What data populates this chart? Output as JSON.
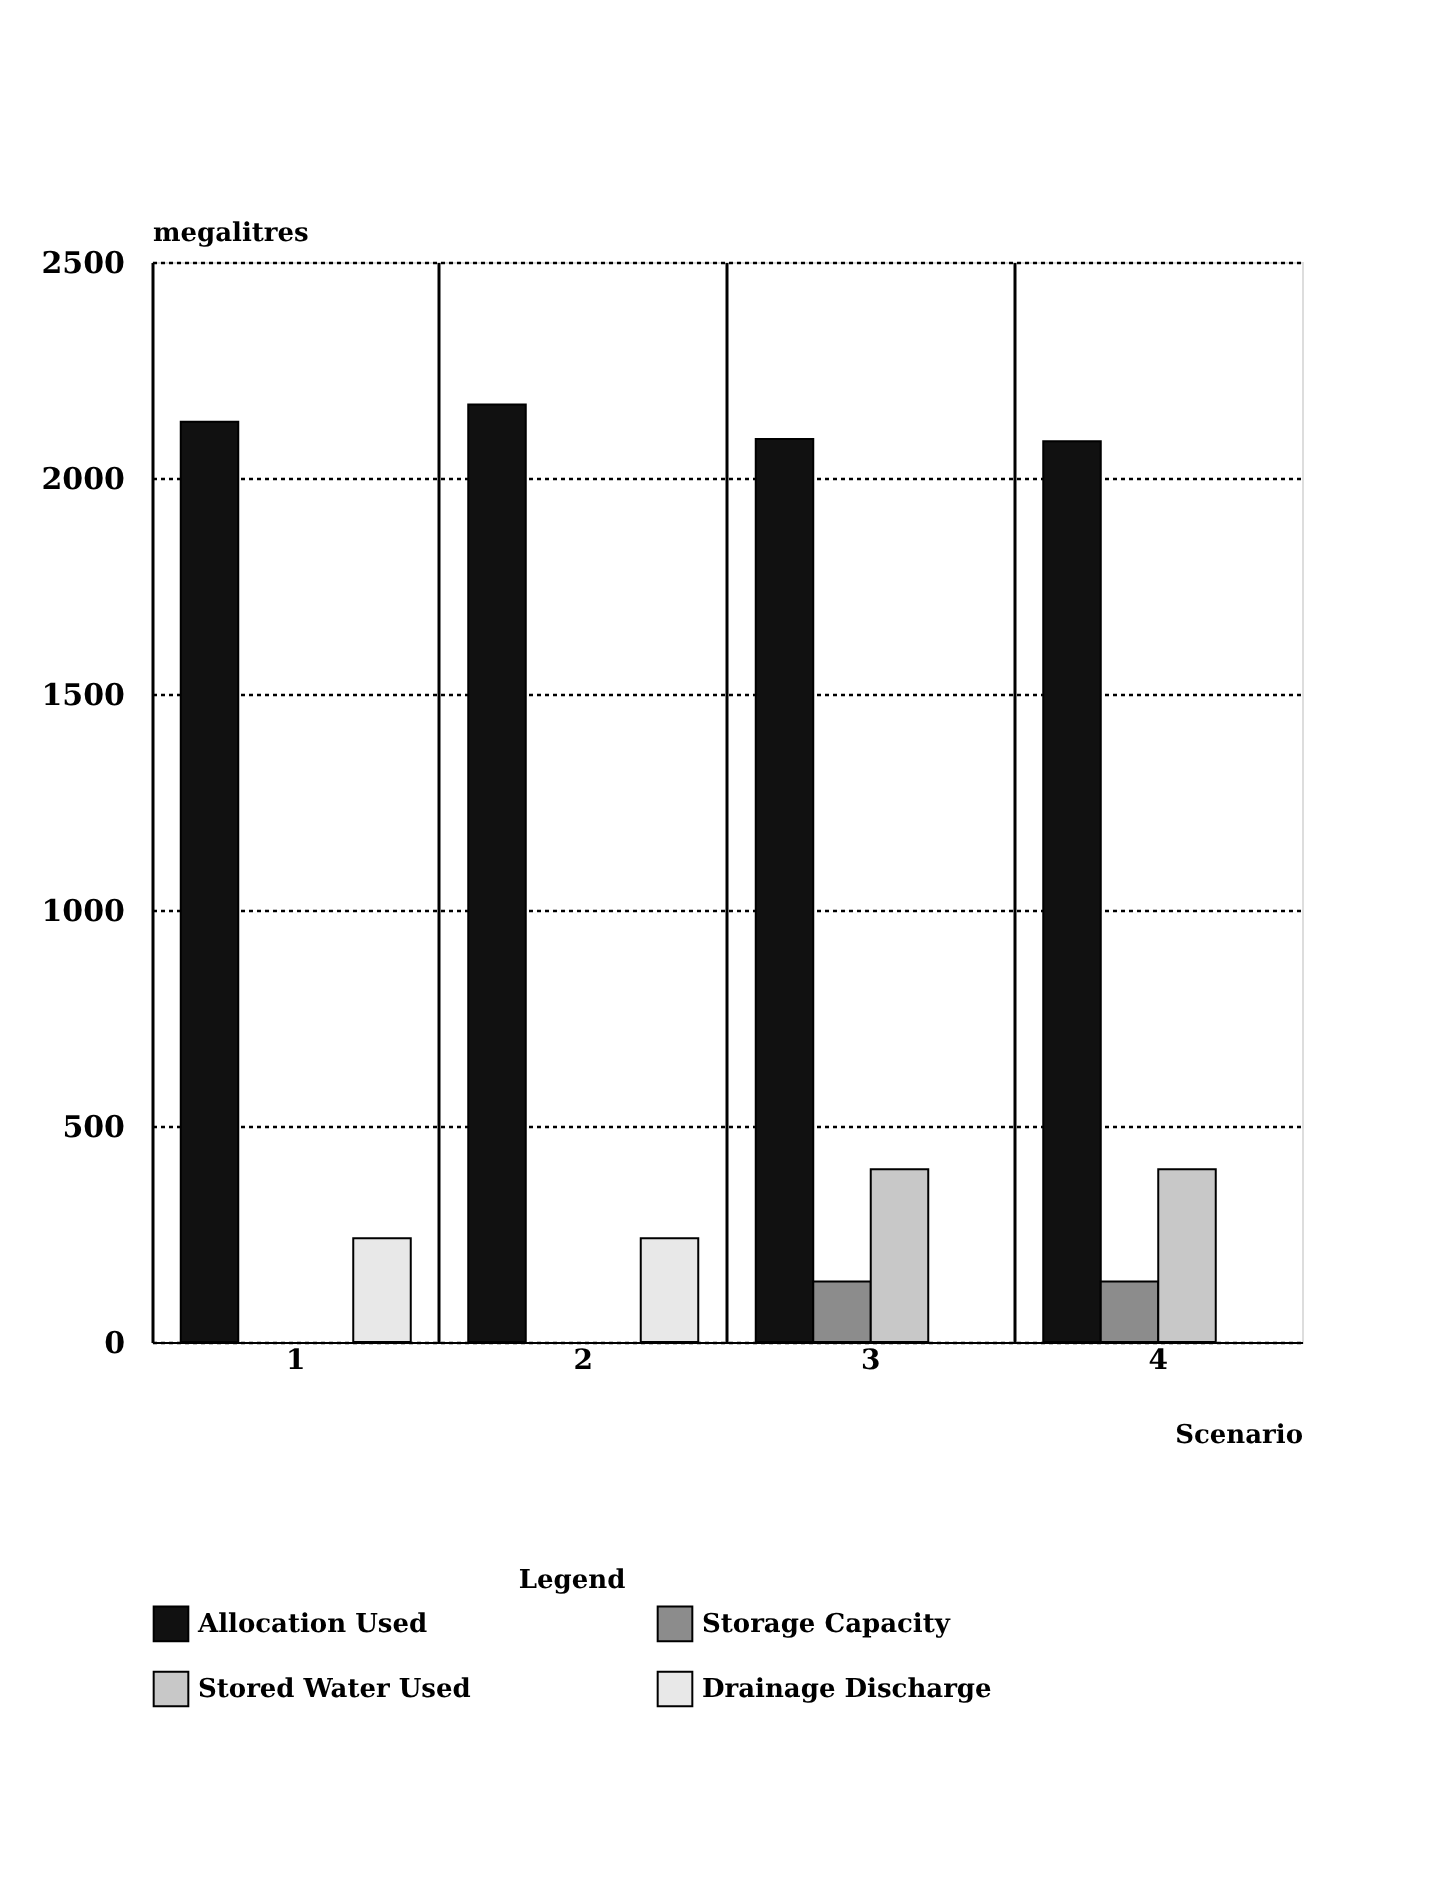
{
  "chart_data": {
    "type": "bar",
    "categories": [
      "1",
      "2",
      "3",
      "4"
    ],
    "xlabel": "Scenario",
    "ylabel": "megalitres",
    "legend_title": "Legend",
    "series": [
      {
        "name": "Allocation Used",
        "color": "#111111",
        "values": [
          2130,
          2170,
          2090,
          2085
        ]
      },
      {
        "name": "Storage Capacity",
        "color": "#8c8c8c",
        "values": [
          null,
          null,
          140,
          140
        ]
      },
      {
        "name": "Stored Water Used",
        "color": "#c8c8c8",
        "values": [
          null,
          null,
          400,
          400
        ]
      },
      {
        "name": "Drainage Discharge",
        "color": "#e8e8e8",
        "values": [
          240,
          240,
          null,
          null
        ]
      }
    ],
    "ylim": [
      0,
      2500
    ],
    "yticks": [
      0,
      500,
      1000,
      1500,
      2000,
      2500
    ],
    "grid": "y",
    "legend": "bottom"
  }
}
